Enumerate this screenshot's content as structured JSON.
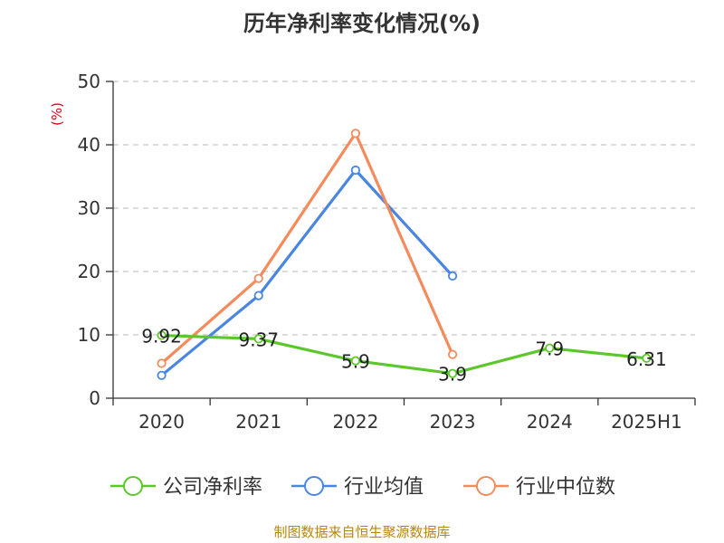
{
  "chart_data": {
    "type": "line",
    "title": "历年净利率变化情况(%)",
    "ylabel": "(%)",
    "xlabel": "",
    "categories": [
      "2020",
      "2021",
      "2022",
      "2023",
      "2024",
      "2025H1"
    ],
    "ylim": [
      0,
      50
    ],
    "yticks": [
      0,
      10,
      20,
      30,
      40,
      50
    ],
    "grid": true,
    "legend_position": "bottom",
    "series": [
      {
        "name": "公司净利率",
        "color": "#5cc72b",
        "values": [
          9.92,
          9.37,
          5.9,
          3.9,
          7.9,
          6.31
        ],
        "labels": [
          "9.92",
          "9.37",
          "5.9",
          "3.9",
          "7.9",
          "6.31"
        ]
      },
      {
        "name": "行业均值",
        "color": "#4a86e0",
        "values": [
          3.6,
          16.2,
          36.0,
          19.3,
          null,
          null
        ]
      },
      {
        "name": "行业中位数",
        "color": "#f48b5c",
        "values": [
          5.5,
          18.9,
          41.8,
          6.9,
          null,
          null
        ]
      }
    ]
  },
  "source": "制图数据来自恒生聚源数据库"
}
